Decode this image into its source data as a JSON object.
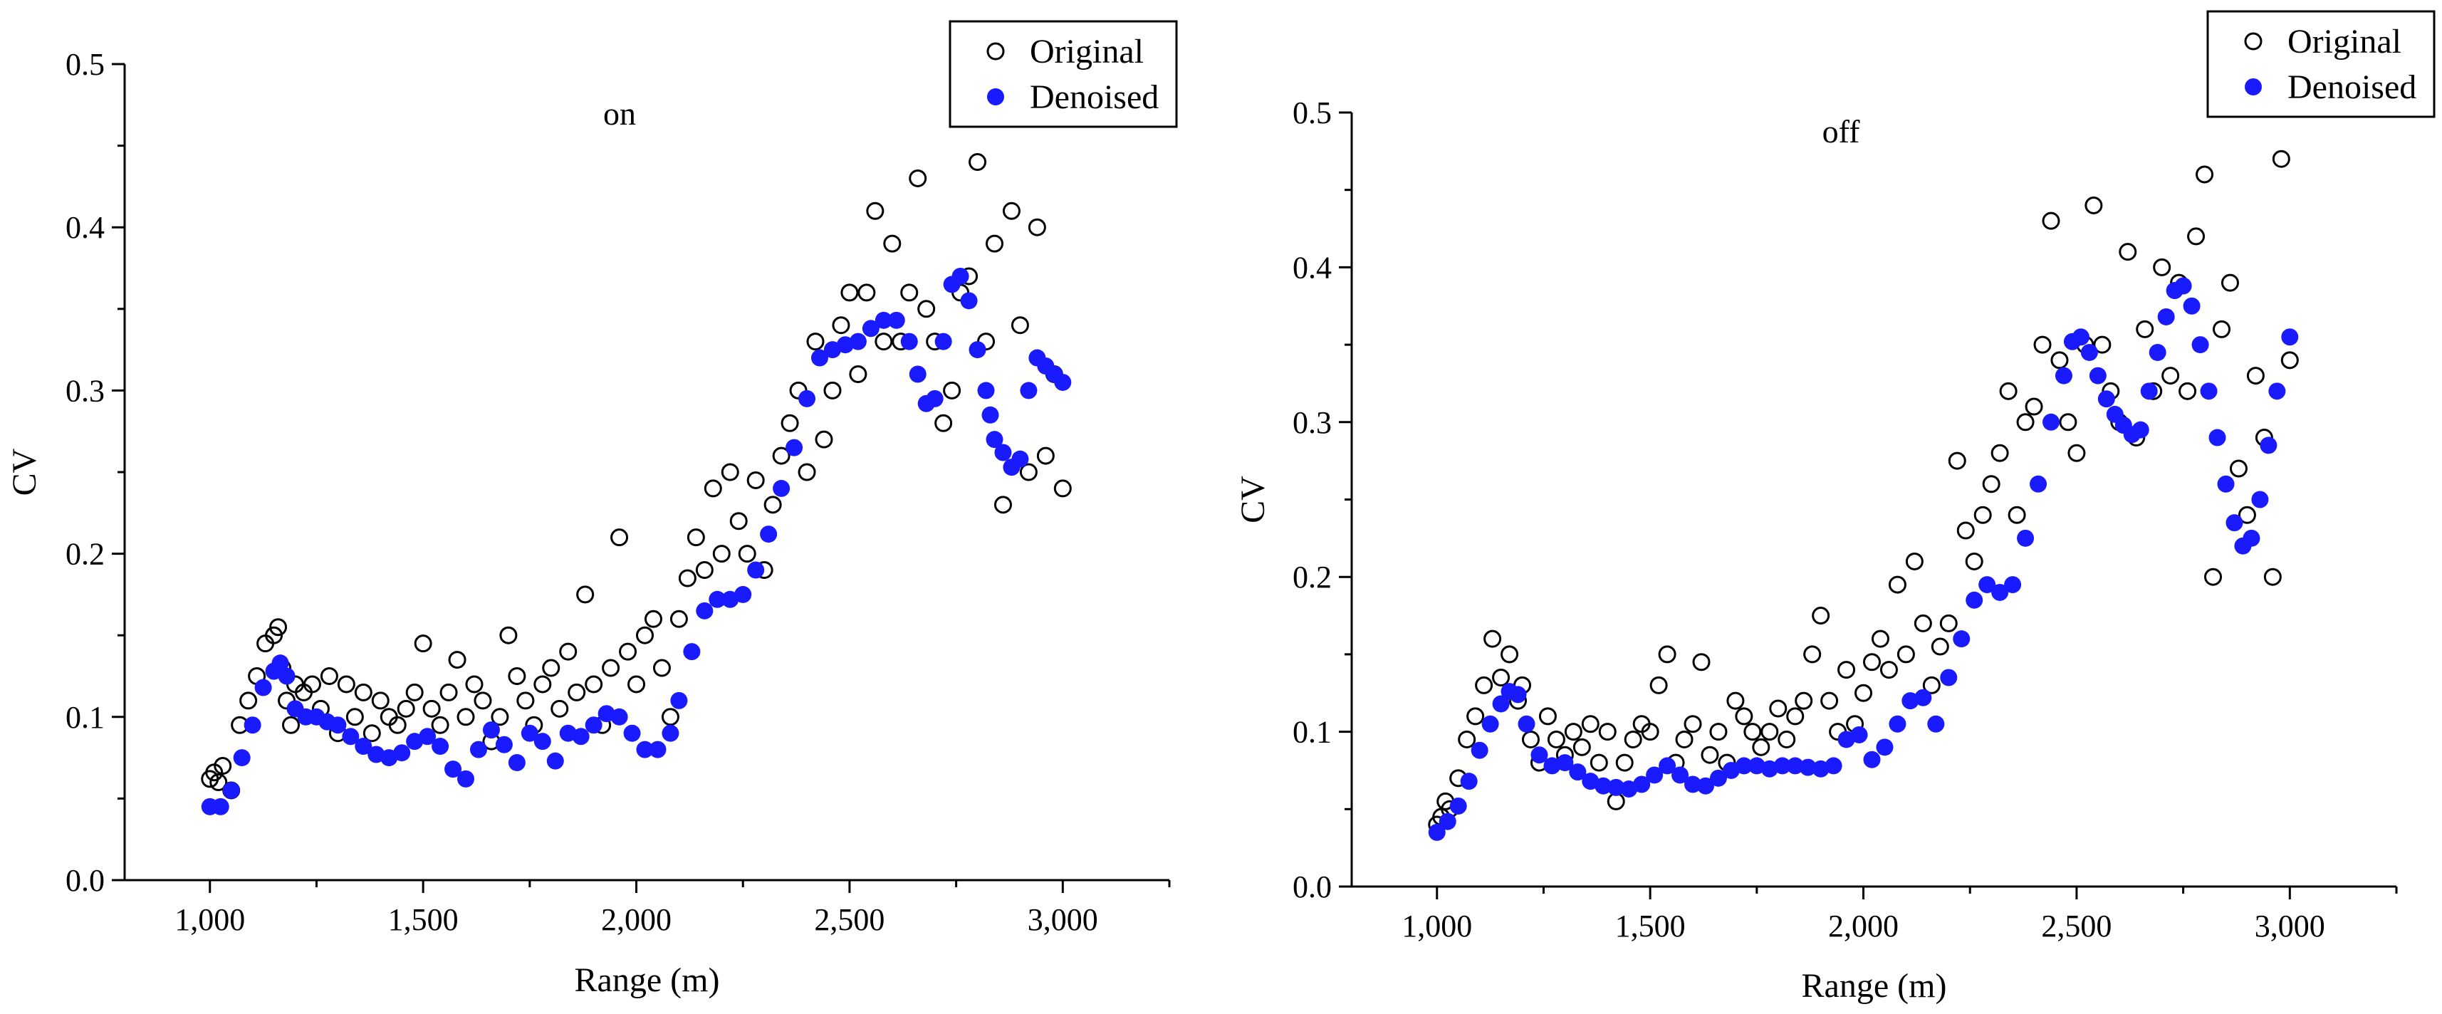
{
  "chart_data": [
    {
      "type": "scatter",
      "title": "on",
      "xlabel": "Range (m)",
      "ylabel": "CV",
      "xlim": [
        800,
        3250
      ],
      "ylim": [
        0,
        0.5
      ],
      "x_ticks": [
        1000,
        1500,
        2000,
        2500,
        3000
      ],
      "x_tick_labels": [
        "1,000",
        "1,500",
        "2,000",
        "2,500",
        "3,000"
      ],
      "y_ticks": [
        0,
        0.1,
        0.2,
        0.3,
        0.4,
        0.5
      ],
      "y_tick_labels": [
        "0.0",
        "0.1",
        "0.2",
        "0.3",
        "0.4",
        "0.5"
      ],
      "legend": {
        "position": "top-right",
        "entries": [
          "Original",
          "Denoised"
        ]
      },
      "series": [
        {
          "name": "Original",
          "marker": "open-circle",
          "color": "#000000",
          "x": [
            1000,
            1010,
            1020,
            1030,
            1050,
            1070,
            1090,
            1110,
            1130,
            1150,
            1160,
            1170,
            1180,
            1190,
            1200,
            1220,
            1240,
            1260,
            1280,
            1300,
            1320,
            1340,
            1360,
            1380,
            1400,
            1420,
            1440,
            1460,
            1480,
            1500,
            1520,
            1540,
            1560,
            1580,
            1600,
            1620,
            1640,
            1660,
            1680,
            1700,
            1720,
            1740,
            1760,
            1780,
            1800,
            1820,
            1840,
            1860,
            1880,
            1900,
            1920,
            1940,
            1960,
            1980,
            2000,
            2020,
            2040,
            2060,
            2080,
            2100,
            2120,
            2140,
            2160,
            2180,
            2200,
            2220,
            2240,
            2260,
            2280,
            2300,
            2320,
            2340,
            2360,
            2380,
            2400,
            2420,
            2440,
            2460,
            2480,
            2500,
            2520,
            2540,
            2560,
            2580,
            2600,
            2620,
            2640,
            2660,
            2680,
            2700,
            2720,
            2740,
            2760,
            2780,
            2800,
            2820,
            2840,
            2860,
            2880,
            2900,
            2920,
            2940,
            2960,
            2980,
            3000
          ],
          "y": [
            0.062,
            0.066,
            0.06,
            0.07,
            0.055,
            0.095,
            0.11,
            0.125,
            0.145,
            0.15,
            0.155,
            0.13,
            0.11,
            0.095,
            0.12,
            0.115,
            0.12,
            0.105,
            0.125,
            0.09,
            0.12,
            0.1,
            0.115,
            0.09,
            0.11,
            0.1,
            0.095,
            0.105,
            0.115,
            0.145,
            0.105,
            0.095,
            0.115,
            0.135,
            0.1,
            0.12,
            0.11,
            0.085,
            0.1,
            0.15,
            0.125,
            0.11,
            0.095,
            0.12,
            0.13,
            0.105,
            0.14,
            0.115,
            0.175,
            0.12,
            0.095,
            0.13,
            0.21,
            0.14,
            0.12,
            0.15,
            0.16,
            0.13,
            0.1,
            0.16,
            0.185,
            0.21,
            0.19,
            0.24,
            0.2,
            0.25,
            0.22,
            0.2,
            0.245,
            0.19,
            0.23,
            0.26,
            0.28,
            0.3,
            0.25,
            0.33,
            0.27,
            0.3,
            0.34,
            0.36,
            0.31,
            0.36,
            0.41,
            0.33,
            0.39,
            0.33,
            0.36,
            0.43,
            0.35,
            0.33,
            0.28,
            0.3,
            0.36,
            0.37,
            0.44,
            0.33,
            0.39,
            0.23,
            0.41,
            0.34,
            0.25,
            0.4,
            0.26,
            0.31,
            0.24
          ]
        },
        {
          "name": "Denoised",
          "marker": "filled-circle",
          "color": "#1a1aff",
          "x": [
            1000,
            1025,
            1050,
            1075,
            1100,
            1125,
            1150,
            1165,
            1180,
            1200,
            1225,
            1250,
            1275,
            1300,
            1330,
            1360,
            1390,
            1420,
            1450,
            1480,
            1510,
            1540,
            1570,
            1600,
            1630,
            1660,
            1690,
            1720,
            1750,
            1780,
            1810,
            1840,
            1870,
            1900,
            1930,
            1960,
            1990,
            2020,
            2050,
            2080,
            2100,
            2130,
            2160,
            2190,
            2220,
            2250,
            2280,
            2310,
            2340,
            2370,
            2400,
            2430,
            2460,
            2490,
            2520,
            2550,
            2580,
            2610,
            2640,
            2660,
            2680,
            2700,
            2720,
            2740,
            2760,
            2780,
            2800,
            2820,
            2830,
            2840,
            2860,
            2880,
            2900,
            2920,
            2940,
            2960,
            2980,
            3000
          ],
          "y": [
            0.045,
            0.045,
            0.055,
            0.075,
            0.095,
            0.118,
            0.128,
            0.133,
            0.125,
            0.105,
            0.1,
            0.1,
            0.097,
            0.095,
            0.088,
            0.082,
            0.077,
            0.075,
            0.078,
            0.085,
            0.088,
            0.082,
            0.068,
            0.062,
            0.08,
            0.092,
            0.083,
            0.072,
            0.09,
            0.085,
            0.073,
            0.09,
            0.088,
            0.095,
            0.102,
            0.1,
            0.09,
            0.08,
            0.08,
            0.09,
            0.11,
            0.14,
            0.165,
            0.172,
            0.172,
            0.175,
            0.19,
            0.212,
            0.24,
            0.265,
            0.295,
            0.32,
            0.325,
            0.328,
            0.33,
            0.338,
            0.343,
            0.343,
            0.33,
            0.31,
            0.292,
            0.295,
            0.33,
            0.365,
            0.37,
            0.355,
            0.325,
            0.3,
            0.285,
            0.27,
            0.262,
            0.253,
            0.258,
            0.3,
            0.32,
            0.315,
            0.31,
            0.305
          ]
        }
      ]
    },
    {
      "type": "scatter",
      "title": "off",
      "xlabel": "Range (m)",
      "ylabel": "CV",
      "xlim": [
        800,
        3250
      ],
      "ylim": [
        0,
        0.5
      ],
      "x_ticks": [
        1000,
        1500,
        2000,
        2500,
        3000
      ],
      "x_tick_labels": [
        "1,000",
        "1,500",
        "2,000",
        "2,500",
        "3,000"
      ],
      "y_ticks": [
        0,
        0.1,
        0.2,
        0.3,
        0.4,
        0.5
      ],
      "y_tick_labels": [
        "0.0",
        "0.1",
        "0.2",
        "0.3",
        "0.4",
        "0.5"
      ],
      "legend": {
        "position": "top-right",
        "entries": [
          "Original",
          "Denoised"
        ]
      },
      "series": [
        {
          "name": "Original",
          "marker": "open-circle",
          "color": "#000000",
          "x": [
            1000,
            1010,
            1020,
            1030,
            1050,
            1070,
            1090,
            1110,
            1130,
            1150,
            1170,
            1190,
            1200,
            1220,
            1240,
            1260,
            1280,
            1300,
            1320,
            1340,
            1360,
            1380,
            1400,
            1420,
            1440,
            1460,
            1480,
            1500,
            1520,
            1540,
            1560,
            1580,
            1600,
            1620,
            1640,
            1660,
            1680,
            1700,
            1720,
            1740,
            1760,
            1780,
            1800,
            1820,
            1840,
            1860,
            1880,
            1900,
            1920,
            1940,
            1960,
            1980,
            2000,
            2020,
            2040,
            2060,
            2080,
            2100,
            2120,
            2140,
            2160,
            2180,
            2200,
            2220,
            2240,
            2260,
            2280,
            2300,
            2320,
            2340,
            2360,
            2380,
            2400,
            2420,
            2440,
            2460,
            2480,
            2500,
            2520,
            2540,
            2560,
            2580,
            2600,
            2620,
            2640,
            2660,
            2680,
            2700,
            2720,
            2740,
            2760,
            2780,
            2800,
            2820,
            2840,
            2860,
            2880,
            2900,
            2920,
            2940,
            2960,
            2980,
            3000
          ],
          "y": [
            0.04,
            0.045,
            0.055,
            0.05,
            0.07,
            0.095,
            0.11,
            0.13,
            0.16,
            0.135,
            0.15,
            0.12,
            0.13,
            0.095,
            0.08,
            0.11,
            0.095,
            0.085,
            0.1,
            0.09,
            0.105,
            0.08,
            0.1,
            0.055,
            0.08,
            0.095,
            0.105,
            0.1,
            0.13,
            0.15,
            0.08,
            0.095,
            0.105,
            0.145,
            0.085,
            0.1,
            0.08,
            0.12,
            0.11,
            0.1,
            0.09,
            0.1,
            0.115,
            0.095,
            0.11,
            0.12,
            0.15,
            0.175,
            0.12,
            0.1,
            0.14,
            0.105,
            0.125,
            0.145,
            0.16,
            0.14,
            0.195,
            0.15,
            0.21,
            0.17,
            0.13,
            0.155,
            0.17,
            0.275,
            0.23,
            0.21,
            0.24,
            0.26,
            0.28,
            0.32,
            0.24,
            0.3,
            0.31,
            0.35,
            0.43,
            0.34,
            0.3,
            0.28,
            0.35,
            0.44,
            0.35,
            0.32,
            0.3,
            0.41,
            0.29,
            0.36,
            0.32,
            0.4,
            0.33,
            0.39,
            0.32,
            0.42,
            0.46,
            0.2,
            0.36,
            0.39,
            0.27,
            0.24,
            0.33,
            0.29,
            0.2,
            0.47,
            0.34
          ]
        },
        {
          "name": "Denoised",
          "marker": "filled-circle",
          "color": "#1a1aff",
          "x": [
            1000,
            1025,
            1050,
            1075,
            1100,
            1125,
            1150,
            1170,
            1190,
            1210,
            1240,
            1270,
            1300,
            1330,
            1360,
            1390,
            1420,
            1450,
            1480,
            1510,
            1540,
            1570,
            1600,
            1630,
            1660,
            1690,
            1720,
            1750,
            1780,
            1810,
            1840,
            1870,
            1900,
            1930,
            1960,
            1990,
            2020,
            2050,
            2080,
            2110,
            2140,
            2170,
            2200,
            2230,
            2260,
            2290,
            2320,
            2350,
            2380,
            2410,
            2440,
            2470,
            2490,
            2510,
            2530,
            2550,
            2570,
            2590,
            2610,
            2630,
            2650,
            2670,
            2690,
            2710,
            2730,
            2750,
            2770,
            2790,
            2810,
            2830,
            2850,
            2870,
            2890,
            2910,
            2930,
            2950,
            2970,
            3000
          ],
          "y": [
            0.035,
            0.042,
            0.052,
            0.068,
            0.088,
            0.105,
            0.118,
            0.126,
            0.124,
            0.105,
            0.085,
            0.078,
            0.08,
            0.074,
            0.068,
            0.065,
            0.064,
            0.063,
            0.066,
            0.072,
            0.078,
            0.072,
            0.066,
            0.065,
            0.07,
            0.075,
            0.078,
            0.078,
            0.076,
            0.078,
            0.078,
            0.077,
            0.076,
            0.078,
            0.095,
            0.098,
            0.082,
            0.09,
            0.105,
            0.12,
            0.122,
            0.105,
            0.135,
            0.16,
            0.185,
            0.195,
            0.19,
            0.195,
            0.225,
            0.26,
            0.3,
            0.33,
            0.352,
            0.355,
            0.345,
            0.33,
            0.315,
            0.305,
            0.298,
            0.292,
            0.295,
            0.32,
            0.345,
            0.368,
            0.385,
            0.388,
            0.375,
            0.35,
            0.32,
            0.29,
            0.26,
            0.235,
            0.22,
            0.225,
            0.25,
            0.285,
            0.32,
            0.355
          ]
        }
      ]
    }
  ]
}
